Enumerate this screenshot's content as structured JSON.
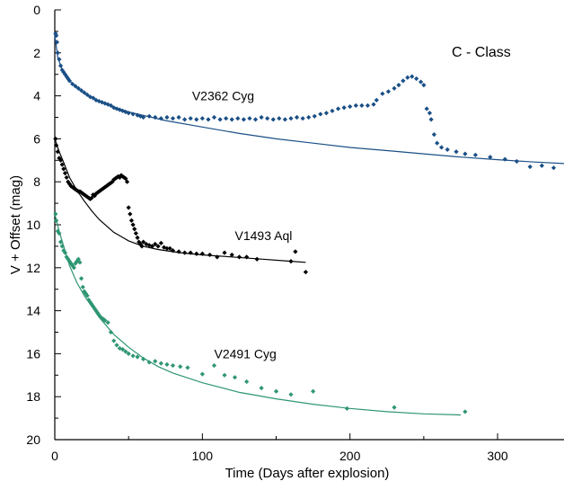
{
  "chart_data": {
    "type": "scatter",
    "title": "",
    "xlabel": "Time (Days after explosion)",
    "ylabel": "V + Offset (mag)",
    "xlim": [
      0,
      345
    ],
    "ylim": [
      20,
      0
    ],
    "y_inverted": true,
    "grid": false,
    "xticks": [
      0,
      100,
      200,
      300
    ],
    "yticks": [
      0,
      2,
      4,
      6,
      8,
      10,
      12,
      14,
      16,
      18,
      20
    ],
    "xtick_labels": [
      "0",
      "100",
      "200",
      "300"
    ],
    "ytick_labels": [
      "0",
      "2",
      "4",
      "6",
      "8",
      "10",
      "12",
      "14",
      "16",
      "18",
      "20"
    ],
    "annotation": "C - Class",
    "series": [
      {
        "name": "V2362 Cyg",
        "color": "#1a4f86",
        "fit": [
          [
            0,
            1.2
          ],
          [
            2,
            2.2
          ],
          [
            5,
            2.8
          ],
          [
            10,
            3.3
          ],
          [
            20,
            3.9
          ],
          [
            35,
            4.4
          ],
          [
            50,
            4.75
          ],
          [
            75,
            5.15
          ],
          [
            100,
            5.45
          ],
          [
            125,
            5.75
          ],
          [
            150,
            6.0
          ],
          [
            175,
            6.2
          ],
          [
            200,
            6.4
          ],
          [
            225,
            6.55
          ],
          [
            250,
            6.7
          ],
          [
            275,
            6.85
          ],
          [
            300,
            6.97
          ],
          [
            325,
            7.08
          ],
          [
            345,
            7.15
          ]
        ],
        "points": [
          [
            0.5,
            1.1
          ],
          [
            1,
            1.2
          ],
          [
            1.5,
            1.5
          ],
          [
            2,
            2.0
          ],
          [
            3,
            2.3
          ],
          [
            4,
            2.6
          ],
          [
            5,
            2.8
          ],
          [
            6,
            2.9
          ],
          [
            7,
            3.0
          ],
          [
            8,
            3.1
          ],
          [
            9,
            3.2
          ],
          [
            10,
            3.3
          ],
          [
            12,
            3.45
          ],
          [
            14,
            3.55
          ],
          [
            16,
            3.65
          ],
          [
            18,
            3.75
          ],
          [
            20,
            3.85
          ],
          [
            22,
            3.95
          ],
          [
            24,
            4.05
          ],
          [
            26,
            4.1
          ],
          [
            28,
            4.2
          ],
          [
            30,
            4.25
          ],
          [
            32,
            4.3
          ],
          [
            34,
            4.35
          ],
          [
            36,
            4.4
          ],
          [
            38,
            4.45
          ],
          [
            40,
            4.55
          ],
          [
            42,
            4.6
          ],
          [
            44,
            4.65
          ],
          [
            46,
            4.7
          ],
          [
            48,
            4.75
          ],
          [
            50,
            4.8
          ],
          [
            53,
            4.85
          ],
          [
            56,
            4.9
          ],
          [
            58,
            4.95
          ],
          [
            60,
            5.0
          ],
          [
            64,
            4.95
          ],
          [
            68,
            5.0
          ],
          [
            72,
            5.05
          ],
          [
            76,
            5.0
          ],
          [
            80,
            5.05
          ],
          [
            84,
            5.0
          ],
          [
            88,
            5.1
          ],
          [
            92,
            5.05
          ],
          [
            96,
            5.1
          ],
          [
            100,
            5.05
          ],
          [
            104,
            5.1
          ],
          [
            108,
            5.0
          ],
          [
            112,
            5.1
          ],
          [
            116,
            5.05
          ],
          [
            120,
            5.1
          ],
          [
            124,
            5.05
          ],
          [
            128,
            5.1
          ],
          [
            132,
            5.05
          ],
          [
            136,
            5.1
          ],
          [
            140,
            5.0
          ],
          [
            144,
            5.05
          ],
          [
            148,
            5.1
          ],
          [
            152,
            5.05
          ],
          [
            156,
            5.1
          ],
          [
            160,
            5.05
          ],
          [
            164,
            5.0
          ],
          [
            168,
            5.05
          ],
          [
            172,
            5.0
          ],
          [
            176,
            4.95
          ],
          [
            180,
            4.85
          ],
          [
            184,
            4.8
          ],
          [
            188,
            4.7
          ],
          [
            192,
            4.6
          ],
          [
            196,
            4.55
          ],
          [
            200,
            4.5
          ],
          [
            204,
            4.45
          ],
          [
            208,
            4.45
          ],
          [
            212,
            4.45
          ],
          [
            216,
            4.4
          ],
          [
            218,
            4.2
          ],
          [
            222,
            3.9
          ],
          [
            226,
            3.8
          ],
          [
            230,
            3.65
          ],
          [
            233,
            3.5
          ],
          [
            236,
            3.3
          ],
          [
            239,
            3.15
          ],
          [
            242,
            3.1
          ],
          [
            245,
            3.2
          ],
          [
            248,
            3.35
          ],
          [
            250,
            3.5
          ],
          [
            252,
            4.6
          ],
          [
            254,
            4.8
          ],
          [
            255,
            5.1
          ],
          [
            257,
            5.8
          ],
          [
            259,
            6.2
          ],
          [
            262,
            6.4
          ],
          [
            266,
            6.5
          ],
          [
            272,
            6.6
          ],
          [
            278,
            6.7
          ],
          [
            285,
            6.75
          ],
          [
            295,
            6.85
          ],
          [
            305,
            6.95
          ],
          [
            313,
            7.05
          ],
          [
            322,
            7.3
          ],
          [
            330,
            7.25
          ],
          [
            338,
            7.35
          ]
        ]
      },
      {
        "name": "V1493 Aql",
        "color": "#000000",
        "fit": [
          [
            0,
            6.0
          ],
          [
            3,
            6.6
          ],
          [
            6,
            7.1
          ],
          [
            10,
            7.8
          ],
          [
            15,
            8.4
          ],
          [
            20,
            8.9
          ],
          [
            25,
            9.35
          ],
          [
            30,
            9.75
          ],
          [
            35,
            10.05
          ],
          [
            40,
            10.35
          ],
          [
            45,
            10.55
          ],
          [
            50,
            10.75
          ],
          [
            60,
            11.0
          ],
          [
            70,
            11.15
          ],
          [
            85,
            11.3
          ],
          [
            100,
            11.4
          ],
          [
            120,
            11.5
          ],
          [
            140,
            11.6
          ],
          [
            160,
            11.7
          ],
          [
            170,
            11.75
          ]
        ],
        "points": [
          [
            0.5,
            6.0
          ],
          [
            1,
            6.3
          ],
          [
            2,
            6.6
          ],
          [
            3,
            6.9
          ],
          [
            4,
            7.0
          ],
          [
            5,
            7.2
          ],
          [
            6,
            7.4
          ],
          [
            7,
            7.6
          ],
          [
            8,
            7.8
          ],
          [
            9,
            8.0
          ],
          [
            10,
            8.1
          ],
          [
            11,
            8.2
          ],
          [
            12,
            8.25
          ],
          [
            13,
            8.3
          ],
          [
            14,
            8.35
          ],
          [
            15,
            8.4
          ],
          [
            16,
            8.45
          ],
          [
            17,
            8.45
          ],
          [
            18,
            8.5
          ],
          [
            19,
            8.55
          ],
          [
            20,
            8.6
          ],
          [
            21,
            8.65
          ],
          [
            22,
            8.7
          ],
          [
            23,
            8.75
          ],
          [
            24,
            8.8
          ],
          [
            25,
            8.75
          ],
          [
            26,
            8.6
          ],
          [
            27,
            8.65
          ],
          [
            28,
            8.55
          ],
          [
            29,
            8.5
          ],
          [
            30,
            8.45
          ],
          [
            31,
            8.4
          ],
          [
            32,
            8.35
          ],
          [
            33,
            8.3
          ],
          [
            34,
            8.25
          ],
          [
            35,
            8.2
          ],
          [
            36,
            8.15
          ],
          [
            37,
            8.1
          ],
          [
            38,
            8.05
          ],
          [
            39,
            8.0
          ],
          [
            40,
            7.9
          ],
          [
            41,
            7.85
          ],
          [
            42,
            7.8
          ],
          [
            43,
            7.75
          ],
          [
            44,
            7.8
          ],
          [
            45,
            7.7
          ],
          [
            46,
            7.75
          ],
          [
            47,
            7.8
          ],
          [
            48,
            7.85
          ],
          [
            49,
            8.0
          ],
          [
            50,
            9.2
          ],
          [
            51,
            9.5
          ],
          [
            52,
            9.8
          ],
          [
            53,
            10.0
          ],
          [
            54,
            10.2
          ],
          [
            55,
            10.4
          ],
          [
            56,
            10.6
          ],
          [
            57,
            10.8
          ],
          [
            58,
            10.9
          ],
          [
            59,
            11.0
          ],
          [
            60,
            10.8
          ],
          [
            62,
            10.9
          ],
          [
            64,
            10.95
          ],
          [
            66,
            11.0
          ],
          [
            68,
            10.9
          ],
          [
            70,
            11.0
          ],
          [
            72,
            10.85
          ],
          [
            74,
            11.05
          ],
          [
            76,
            11.1
          ],
          [
            78,
            11.1
          ],
          [
            80,
            11.2
          ],
          [
            84,
            11.25
          ],
          [
            88,
            11.3
          ],
          [
            92,
            11.3
          ],
          [
            96,
            11.35
          ],
          [
            100,
            11.35
          ],
          [
            105,
            11.4
          ],
          [
            110,
            11.5
          ],
          [
            115,
            11.3
          ],
          [
            120,
            11.4
          ],
          [
            125,
            11.5
          ],
          [
            130,
            11.5
          ],
          [
            137,
            11.6
          ],
          [
            160,
            11.7
          ],
          [
            163,
            11.25
          ],
          [
            170,
            12.2
          ]
        ]
      },
      {
        "name": "V2491 Cyg",
        "color": "#2e9672",
        "fit": [
          [
            0,
            9.5
          ],
          [
            3,
            10.3
          ],
          [
            6,
            11.0
          ],
          [
            10,
            11.9
          ],
          [
            15,
            12.7
          ],
          [
            20,
            13.3
          ],
          [
            25,
            13.8
          ],
          [
            30,
            14.3
          ],
          [
            40,
            15.1
          ],
          [
            50,
            15.7
          ],
          [
            60,
            16.2
          ],
          [
            70,
            16.6
          ],
          [
            80,
            16.9
          ],
          [
            100,
            17.35
          ],
          [
            125,
            17.8
          ],
          [
            150,
            18.1
          ],
          [
            175,
            18.35
          ],
          [
            200,
            18.55
          ],
          [
            225,
            18.7
          ],
          [
            250,
            18.8
          ],
          [
            275,
            18.85
          ]
        ],
        "points": [
          [
            0.5,
            9.5
          ],
          [
            1,
            9.8
          ],
          [
            2,
            10.3
          ],
          [
            3,
            10.4
          ],
          [
            4,
            10.8
          ],
          [
            5,
            11.0
          ],
          [
            6,
            11.2
          ],
          [
            7,
            11.3
          ],
          [
            8,
            11.5
          ],
          [
            9,
            11.6
          ],
          [
            10,
            11.7
          ],
          [
            11,
            11.8
          ],
          [
            12,
            11.9
          ],
          [
            13,
            12.0
          ],
          [
            14,
            11.8
          ],
          [
            15,
            11.7
          ],
          [
            16,
            11.6
          ],
          [
            17,
            11.75
          ],
          [
            18,
            12.5
          ],
          [
            19,
            12.9
          ],
          [
            20,
            13.1
          ],
          [
            21,
            13.2
          ],
          [
            22,
            13.3
          ],
          [
            23,
            13.5
          ],
          [
            24,
            13.6
          ],
          [
            25,
            13.7
          ],
          [
            26,
            13.8
          ],
          [
            27,
            13.9
          ],
          [
            28,
            14.0
          ],
          [
            29,
            14.1
          ],
          [
            30,
            14.2
          ],
          [
            31,
            14.3
          ],
          [
            32,
            14.35
          ],
          [
            33,
            14.4
          ],
          [
            34,
            14.45
          ],
          [
            36,
            14.55
          ],
          [
            38,
            15.0
          ],
          [
            40,
            15.4
          ],
          [
            42,
            15.6
          ],
          [
            44,
            15.75
          ],
          [
            46,
            15.8
          ],
          [
            48,
            15.9
          ],
          [
            50,
            16.0
          ],
          [
            53,
            16.1
          ],
          [
            56,
            16.15
          ],
          [
            60,
            16.25
          ],
          [
            64,
            16.4
          ],
          [
            68,
            16.35
          ],
          [
            72,
            16.45
          ],
          [
            76,
            16.5
          ],
          [
            80,
            16.55
          ],
          [
            85,
            16.6
          ],
          [
            90,
            16.65
          ],
          [
            100,
            16.95
          ],
          [
            108,
            16.55
          ],
          [
            115,
            17.0
          ],
          [
            122,
            17.1
          ],
          [
            130,
            17.3
          ],
          [
            140,
            17.6
          ],
          [
            150,
            17.75
          ],
          [
            160,
            17.9
          ],
          [
            175,
            17.75
          ],
          [
            198,
            18.55
          ],
          [
            230,
            18.5
          ],
          [
            278,
            18.7
          ]
        ]
      }
    ],
    "series_label_positions": [
      [
        93,
        4.0
      ],
      [
        122,
        10.5
      ],
      [
        108,
        16.0
      ]
    ]
  }
}
